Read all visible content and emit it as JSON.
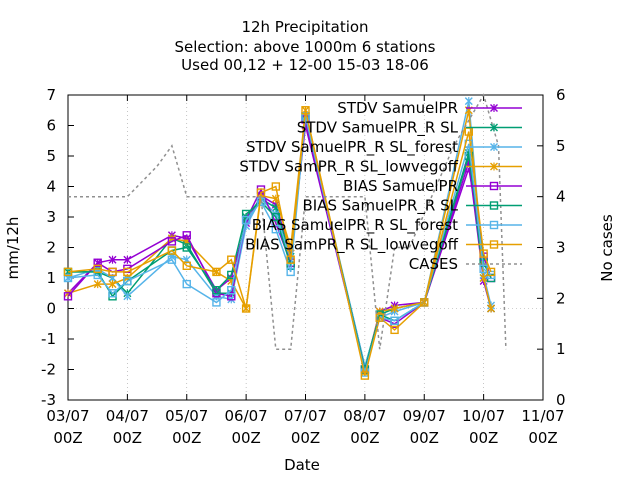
{
  "chart_data": {
    "type": "line",
    "title_lines": [
      "12h Precipitation",
      "Selection: above 1000m      6 stations",
      "Used  00,12  + 12-00 15-03 18-06"
    ],
    "xlabel": "Date",
    "ylabel": "mm/12h",
    "y2label": "No cases",
    "xlim": [
      0,
      16
    ],
    "ylim": [
      -3,
      7
    ],
    "y2lim": [
      0,
      6
    ],
    "x_ticks": [
      {
        "x": 0,
        "l1": "03/07",
        "l2": "00Z"
      },
      {
        "x": 2,
        "l1": "04/07",
        "l2": "00Z"
      },
      {
        "x": 4,
        "l1": "05/07",
        "l2": "00Z"
      },
      {
        "x": 6,
        "l1": "06/07",
        "l2": "00Z"
      },
      {
        "x": 8,
        "l1": "07/07",
        "l2": "00Z"
      },
      {
        "x": 10,
        "l1": "08/07",
        "l2": "00Z"
      },
      {
        "x": 12,
        "l1": "09/07",
        "l2": "00Z"
      },
      {
        "x": 14,
        "l1": "10/07",
        "l2": "00Z"
      },
      {
        "x": 16,
        "l1": "11/07",
        "l2": "00Z"
      }
    ],
    "y_ticks": [
      -3,
      -2,
      -1,
      0,
      1,
      2,
      3,
      4,
      5,
      6,
      7
    ],
    "y2_ticks": [
      0,
      1,
      2,
      3,
      4,
      5,
      6
    ],
    "x": [
      0,
      1,
      1.5,
      2,
      3.5,
      4,
      5,
      5.5,
      6,
      6.5,
      7,
      7.5,
      8,
      10,
      10.5,
      11,
      12,
      13.5,
      14,
      14.25
    ],
    "legend_position": "top-right",
    "series": [
      {
        "name": "STDV SamuelPR",
        "color": "#9400d3",
        "marker": "x",
        "axis": "y1",
        "values": [
          0.5,
          1.5,
          1.6,
          1.6,
          2.4,
          2.3,
          0.6,
          1.0,
          2.8,
          3.7,
          3.4,
          1.8,
          6.0,
          -2.0,
          -0.1,
          0.1,
          0.2,
          4.8,
          0.9,
          0.0
        ]
      },
      {
        "name": "STDV SamuelPR_R SL",
        "color": "#009e73",
        "marker": "x",
        "axis": "y1",
        "values": [
          1.2,
          1.2,
          1.0,
          0.5,
          2.3,
          2.1,
          0.5,
          0.5,
          3.0,
          3.6,
          3.3,
          1.7,
          6.2,
          -1.9,
          -0.2,
          0.0,
          0.2,
          5.1,
          1.0,
          0.0
        ]
      },
      {
        "name": "STDV SamuelPR_R SL_forest",
        "color": "#56b4e9",
        "marker": "x",
        "axis": "y1",
        "values": [
          1.0,
          1.3,
          1.0,
          0.4,
          1.7,
          1.6,
          0.4,
          0.3,
          2.7,
          3.6,
          3.1,
          1.6,
          6.3,
          -1.9,
          -0.3,
          -0.1,
          0.2,
          6.8,
          1.1,
          0.1
        ]
      },
      {
        "name": "STDV SamPR_R SL_lowvegoff",
        "color": "#e69f00",
        "marker": "x",
        "axis": "y1",
        "values": [
          0.5,
          0.8,
          0.8,
          1.0,
          2.3,
          2.2,
          1.2,
          0.9,
          0.0,
          3.7,
          3.6,
          2.0,
          6.5,
          -2.1,
          -0.1,
          0.0,
          0.2,
          6.5,
          1.0,
          0.0
        ]
      },
      {
        "name": "BIAS SamuelPR",
        "color": "#9400d3",
        "marker": "square",
        "axis": "y1",
        "values": [
          0.4,
          1.5,
          1.2,
          1.3,
          2.2,
          2.4,
          0.5,
          0.4,
          2.9,
          3.9,
          2.8,
          1.5,
          6.2,
          -2.0,
          -0.3,
          -0.5,
          0.2,
          4.6,
          1.7,
          1.0
        ]
      },
      {
        "name": "BIAS SamuelPR_R SL",
        "color": "#009e73",
        "marker": "square",
        "axis": "y1",
        "values": [
          1.2,
          1.2,
          0.4,
          0.9,
          1.9,
          2.0,
          0.6,
          1.1,
          3.1,
          3.5,
          3.0,
          1.4,
          6.3,
          -2.0,
          -0.2,
          -0.4,
          0.2,
          5.0,
          1.5,
          1.0
        ]
      },
      {
        "name": "BIAS SamuelPR_R SL_forest",
        "color": "#56b4e9",
        "marker": "square",
        "axis": "y1",
        "values": [
          1.0,
          1.1,
          0.5,
          0.9,
          1.6,
          0.8,
          0.2,
          0.6,
          2.9,
          3.5,
          2.6,
          1.2,
          6.3,
          -2.1,
          -0.3,
          -0.4,
          0.2,
          5.4,
          1.3,
          1.1
        ]
      },
      {
        "name": "BIAS SamPR_R SL_lowvegoff",
        "color": "#e69f00",
        "marker": "square",
        "axis": "y1",
        "values": [
          1.2,
          1.3,
          1.2,
          1.2,
          1.9,
          1.4,
          1.2,
          1.6,
          0.0,
          3.8,
          4.0,
          1.6,
          6.5,
          -2.2,
          -0.3,
          -0.7,
          0.2,
          5.8,
          1.8,
          1.2
        ]
      },
      {
        "name": "CASES",
        "color": "#909090",
        "marker": "none",
        "dash": true,
        "axis": "y2",
        "x": [
          0,
          2,
          3,
          3.5,
          4,
          6,
          6.5,
          7,
          7.5,
          8,
          9,
          10,
          10.5,
          11,
          11.5,
          13,
          14,
          14.5,
          14.75
        ],
        "values": [
          4,
          4,
          4.6,
          5,
          4,
          4,
          4,
          1,
          1,
          4,
          4,
          4,
          1,
          3,
          3,
          5,
          6,
          5,
          1
        ]
      }
    ]
  }
}
